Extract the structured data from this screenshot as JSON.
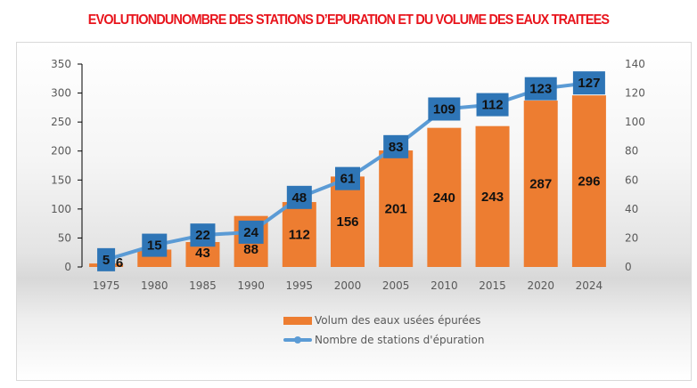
{
  "chart_data": {
    "type": "bar",
    "title": "EVOLUTIONDUNOMBRE DES  STATIONS D’EPURATION ET DU  VOLUME DES EAUX TRAITEES",
    "categories": [
      "1975",
      "1980",
      "1985",
      "1990",
      "1995",
      "2000",
      "2005",
      "2010",
      "2015",
      "2020",
      "2024"
    ],
    "series": [
      {
        "name": "Volum des eaux usées épurées",
        "type": "bar",
        "axis": "left",
        "color": "#ed7d31",
        "values": [
          6,
          30,
          43,
          88,
          112,
          156,
          201,
          240,
          243,
          287,
          296
        ],
        "labels": [
          "6",
          null,
          "43",
          "88",
          "112",
          "156",
          "201",
          "240",
          "243",
          "287",
          "296"
        ]
      },
      {
        "name": "Nombre de stations d'épuration",
        "type": "line",
        "axis": "right",
        "color": "#5b9bd5",
        "label_bg": "#2e75b6",
        "values": [
          5,
          15,
          22,
          24,
          48,
          61,
          83,
          109,
          112,
          123,
          127
        ],
        "labels": [
          "5",
          "15",
          "22",
          "24",
          "48",
          "61",
          "83",
          "109",
          "112",
          "123",
          "127"
        ]
      }
    ],
    "y_left": {
      "min": 0,
      "max": 350,
      "ticks": [
        "0",
        "50",
        "100",
        "150",
        "200",
        "250",
        "300",
        "350"
      ]
    },
    "y_right": {
      "min": 0,
      "max": 140,
      "ticks": [
        "0",
        "20",
        "40",
        "60",
        "80",
        "100",
        "120",
        "140"
      ]
    },
    "grid": false,
    "legend": "bottom"
  }
}
